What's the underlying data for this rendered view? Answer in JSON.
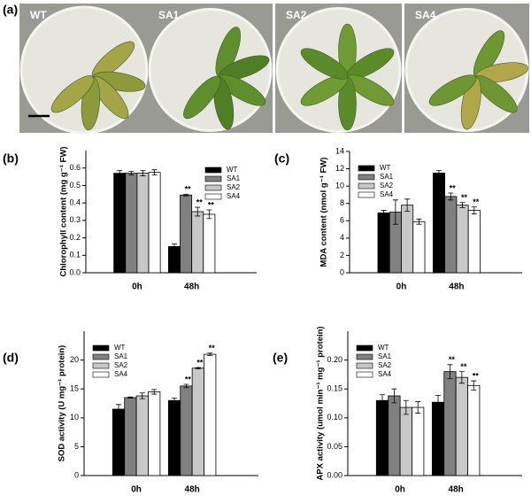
{
  "photo_panel": {
    "panel": "(a)",
    "samples": [
      "WT",
      "SA1",
      "SA2",
      "SA4"
    ]
  },
  "chart_data": [
    {
      "type": "bar",
      "panel": "(b)",
      "y_label": "Chlorophyll content (mg g⁻¹ FW)",
      "categories": [
        "0h",
        "48h"
      ],
      "ylim": [
        0,
        0.7
      ],
      "yticks": [
        {
          "value": 0,
          "label": "0.0"
        },
        0.1,
        0.2,
        0.3,
        0.4,
        0.5,
        0.6
      ],
      "legend": "upper right",
      "grid": false,
      "series": [
        {
          "name": "WT",
          "color": "#000000",
          "values": [
            0.57,
            0.15
          ],
          "errors": [
            0.015,
            0.015
          ],
          "significance": [
            null,
            null
          ]
        },
        {
          "name": "SA1",
          "color": "#808080",
          "values": [
            0.57,
            0.445
          ],
          "errors": [
            0.01,
            0.005
          ],
          "significance": [
            null,
            "**"
          ]
        },
        {
          "name": "SA2",
          "color": "#c8c8c8",
          "values": [
            0.57,
            0.35
          ],
          "errors": [
            0.015,
            0.025
          ],
          "significance": [
            null,
            "**"
          ]
        },
        {
          "name": "SA4",
          "color": "#ffffff",
          "values": [
            0.575,
            0.335
          ],
          "errors": [
            0.015,
            0.025
          ],
          "significance": [
            null,
            "**"
          ]
        }
      ]
    },
    {
      "type": "bar",
      "panel": "(c)",
      "y_label": "MDA content (nmol g⁻¹ FW)",
      "categories": [
        "0h",
        "48h"
      ],
      "ylim": [
        0,
        14
      ],
      "yticks": [
        0,
        2,
        4,
        6,
        8,
        10,
        12,
        14
      ],
      "legend": "upper left",
      "grid": false,
      "series": [
        {
          "name": "WT",
          "color": "#000000",
          "values": [
            6.9,
            11.5
          ],
          "errors": [
            0.3,
            0.3
          ],
          "significance": [
            null,
            null
          ]
        },
        {
          "name": "SA1",
          "color": "#808080",
          "values": [
            7.0,
            8.8
          ],
          "errors": [
            1.4,
            0.4
          ],
          "significance": [
            null,
            "**"
          ]
        },
        {
          "name": "SA2",
          "color": "#c8c8c8",
          "values": [
            7.8,
            7.8
          ],
          "errors": [
            0.7,
            0.3
          ],
          "significance": [
            null,
            "**"
          ]
        },
        {
          "name": "SA4",
          "color": "#ffffff",
          "values": [
            5.9,
            7.2
          ],
          "errors": [
            0.3,
            0.4
          ],
          "significance": [
            null,
            "**"
          ]
        }
      ]
    },
    {
      "type": "bar",
      "panel": "(d)",
      "y_label": "SOD activity (U mg⁻¹ protein)",
      "categories": [
        "0h",
        "48h"
      ],
      "ylim": [
        0,
        25
      ],
      "yticks": [
        0,
        5,
        10,
        15,
        20
      ],
      "legend": "upper left",
      "grid": false,
      "series": [
        {
          "name": "WT",
          "color": "#000000",
          "values": [
            11.5,
            13.0
          ],
          "errors": [
            0.8,
            0.4
          ],
          "significance": [
            null,
            null
          ]
        },
        {
          "name": "SA1",
          "color": "#808080",
          "values": [
            13.5,
            15.5
          ],
          "errors": [
            0.1,
            0.3
          ],
          "significance": [
            null,
            "**"
          ]
        },
        {
          "name": "SA2",
          "color": "#c8c8c8",
          "values": [
            13.8,
            18.6
          ],
          "errors": [
            0.5,
            0.1
          ],
          "significance": [
            null,
            "**"
          ]
        },
        {
          "name": "SA4",
          "color": "#ffffff",
          "values": [
            14.5,
            21.0
          ],
          "errors": [
            0.4,
            0.2
          ],
          "significance": [
            null,
            "**"
          ]
        }
      ]
    },
    {
      "type": "bar",
      "panel": "(e)",
      "y_label": "APX activity (umol min⁻¹ mg⁻¹ protein)",
      "categories": [
        "0h",
        "48h"
      ],
      "ylim": [
        0,
        0.25
      ],
      "yticks": [
        {
          "value": 0,
          "label": "0.00"
        },
        0.05,
        {
          "value": 0.1,
          "label": "0.10"
        },
        0.15,
        {
          "value": 0.2,
          "label": "0.20"
        }
      ],
      "legend": "upper left",
      "grid": false,
      "series": [
        {
          "name": "WT",
          "color": "#000000",
          "values": [
            0.13,
            0.127
          ],
          "errors": [
            0.01,
            0.012
          ],
          "significance": [
            null,
            null
          ]
        },
        {
          "name": "SA1",
          "color": "#808080",
          "values": [
            0.138,
            0.18
          ],
          "errors": [
            0.012,
            0.012
          ],
          "significance": [
            null,
            "**"
          ]
        },
        {
          "name": "SA2",
          "color": "#c8c8c8",
          "values": [
            0.118,
            0.17
          ],
          "errors": [
            0.012,
            0.01
          ],
          "significance": [
            null,
            "**"
          ]
        },
        {
          "name": "SA4",
          "color": "#ffffff",
          "values": [
            0.118,
            0.156
          ],
          "errors": [
            0.01,
            0.008
          ],
          "significance": [
            null,
            "**"
          ]
        }
      ]
    }
  ]
}
